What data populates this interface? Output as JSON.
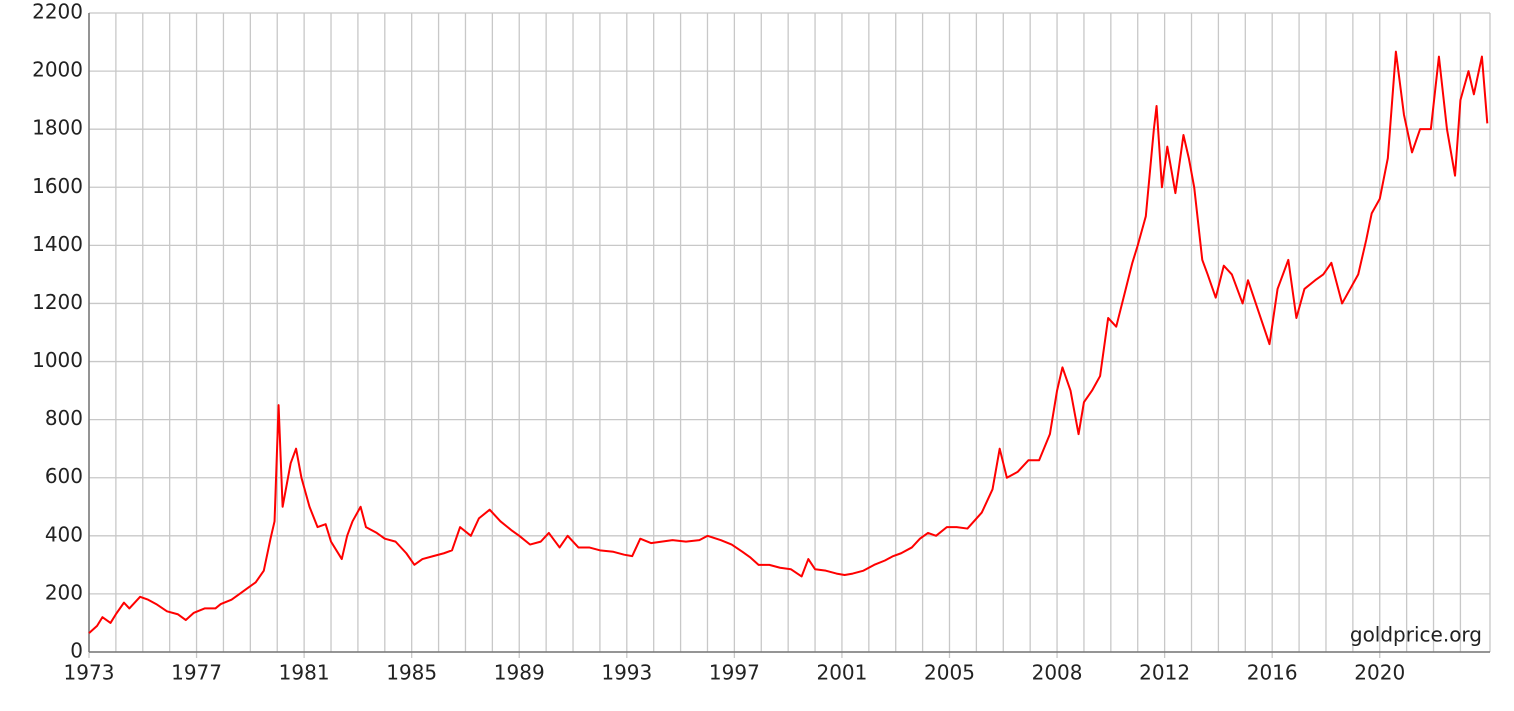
{
  "chart_data": {
    "type": "line",
    "annotation": "goldprice.org",
    "color": "#ff0000",
    "grid": true,
    "x": [
      1973.0,
      1973.3,
      1973.5,
      1973.8,
      1974.0,
      1974.3,
      1974.5,
      1974.9,
      1975.2,
      1975.5,
      1975.9,
      1976.3,
      1976.6,
      1976.9,
      1977.3,
      1977.7,
      1977.9,
      1978.3,
      1978.6,
      1978.9,
      1979.2,
      1979.5,
      1979.75,
      1979.9,
      1980.05,
      1980.2,
      1980.5,
      1980.7,
      1980.9,
      1981.2,
      1981.5,
      1981.8,
      1982.0,
      1982.4,
      1982.6,
      1982.8,
      1983.1,
      1983.3,
      1983.7,
      1984.0,
      1984.4,
      1984.8,
      1985.1,
      1985.4,
      1985.8,
      1986.2,
      1986.5,
      1986.8,
      1987.2,
      1987.5,
      1987.9,
      1988.3,
      1988.7,
      1989.0,
      1989.4,
      1989.8,
      1990.1,
      1990.5,
      1990.8,
      1991.2,
      1991.6,
      1992.0,
      1992.5,
      1992.9,
      1993.2,
      1993.5,
      1993.9,
      1994.3,
      1994.7,
      1995.2,
      1995.7,
      1996.0,
      1996.5,
      1996.9,
      1997.3,
      1997.6,
      1997.9,
      1998.3,
      1998.7,
      1999.1,
      1999.5,
      1999.75,
      2000.0,
      2000.4,
      2000.8,
      2001.1,
      2001.4,
      2001.8,
      2002.2,
      2002.6,
      2002.9,
      2003.2,
      2003.6,
      2003.9,
      2004.2,
      2004.5,
      2004.9,
      2005.2,
      2005.5,
      2005.9,
      2006.2,
      2006.4,
      2006.6,
      2006.9,
      2007.2,
      2007.5,
      2007.8,
      2008.0,
      2008.2,
      2008.5,
      2008.8,
      2009.0,
      2009.3,
      2009.6,
      2009.9,
      2010.2,
      2010.5,
      2010.8,
      2011.0,
      2011.3,
      2011.6,
      2011.7,
      2011.9,
      2012.1,
      2012.4,
      2012.7,
      2012.9,
      2013.1,
      2013.4,
      2013.6,
      2013.9,
      2014.2,
      2014.5,
      2014.9,
      2015.1,
      2015.5,
      2015.9,
      2016.2,
      2016.6,
      2016.9,
      2017.2,
      2017.6,
      2017.9,
      2018.2,
      2018.6,
      2018.9,
      2019.2,
      2019.5,
      2019.7,
      2020.0,
      2020.3,
      2020.6,
      2020.9,
      2021.2,
      2021.5,
      2021.9,
      2022.2,
      2022.5,
      2022.8,
      2023.0,
      2023.3,
      2023.5,
      2023.8,
      2024.0
    ],
    "values": [
      65,
      90,
      120,
      100,
      130,
      170,
      150,
      190,
      180,
      165,
      140,
      130,
      110,
      135,
      150,
      150,
      165,
      180,
      200,
      220,
      240,
      280,
      390,
      450,
      850,
      500,
      650,
      700,
      600,
      500,
      430,
      440,
      380,
      320,
      400,
      450,
      500,
      430,
      410,
      390,
      380,
      340,
      300,
      320,
      330,
      340,
      350,
      430,
      400,
      460,
      490,
      450,
      420,
      400,
      370,
      380,
      410,
      360,
      400,
      360,
      360,
      350,
      345,
      335,
      330,
      390,
      375,
      380,
      385,
      380,
      385,
      400,
      385,
      370,
      345,
      325,
      300,
      300,
      290,
      285,
      260,
      320,
      285,
      280,
      270,
      265,
      270,
      280,
      300,
      315,
      330,
      340,
      360,
      390,
      410,
      400,
      430,
      430,
      425,
      480,
      560,
      700,
      600,
      620,
      660,
      660,
      750,
      900,
      980,
      900,
      750,
      860,
      900,
      950,
      1150,
      1120,
      1230,
      1340,
      1400,
      1500,
      1800,
      1880,
      1600,
      1740,
      1580,
      1780,
      1700,
      1600,
      1350,
      1300,
      1220,
      1330,
      1300,
      1200,
      1280,
      1170,
      1060,
      1250,
      1350,
      1150,
      1250,
      1280,
      1300,
      1340,
      1200,
      1250,
      1300,
      1420,
      1510,
      1560,
      1700,
      2067,
      1850,
      1720,
      1800,
      1800,
      2050,
      1800,
      1640,
      1900,
      2000,
      1920,
      2050,
      1820
    ],
    "xlim": [
      1973,
      2024.1
    ],
    "xticks": [
      1973,
      1977,
      1981,
      1985,
      1989,
      1993,
      1997,
      2001,
      2005,
      2008,
      2012,
      2016,
      2020
    ],
    "ylim": [
      0,
      2200
    ],
    "yticks": [
      0,
      200,
      400,
      600,
      800,
      1000,
      1200,
      1400,
      1600,
      1800,
      2000,
      2200
    ]
  }
}
